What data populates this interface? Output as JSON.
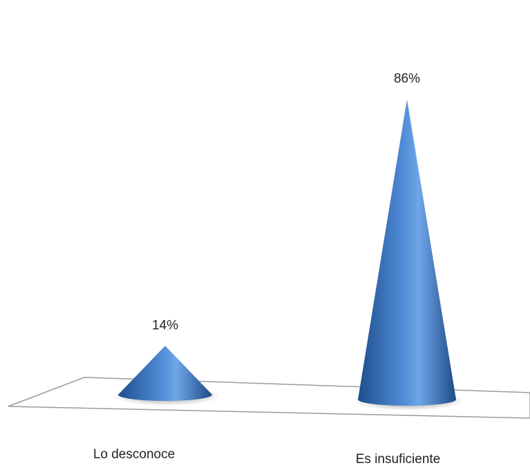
{
  "chart_data": {
    "type": "bar",
    "shape": "cone-3d",
    "categories": [
      "Lo desconoce",
      "Es insuficiente"
    ],
    "values": [
      14,
      86
    ],
    "data_labels": [
      "14%",
      "86%"
    ],
    "ylim": [
      0,
      100
    ],
    "grid": false,
    "legend": "none",
    "colors": {
      "cone_dark": "#1f4e8c",
      "cone_mid": "#3f7ccb",
      "cone_light": "#6fa6e8",
      "floor_line": "#9a9a9a"
    }
  }
}
